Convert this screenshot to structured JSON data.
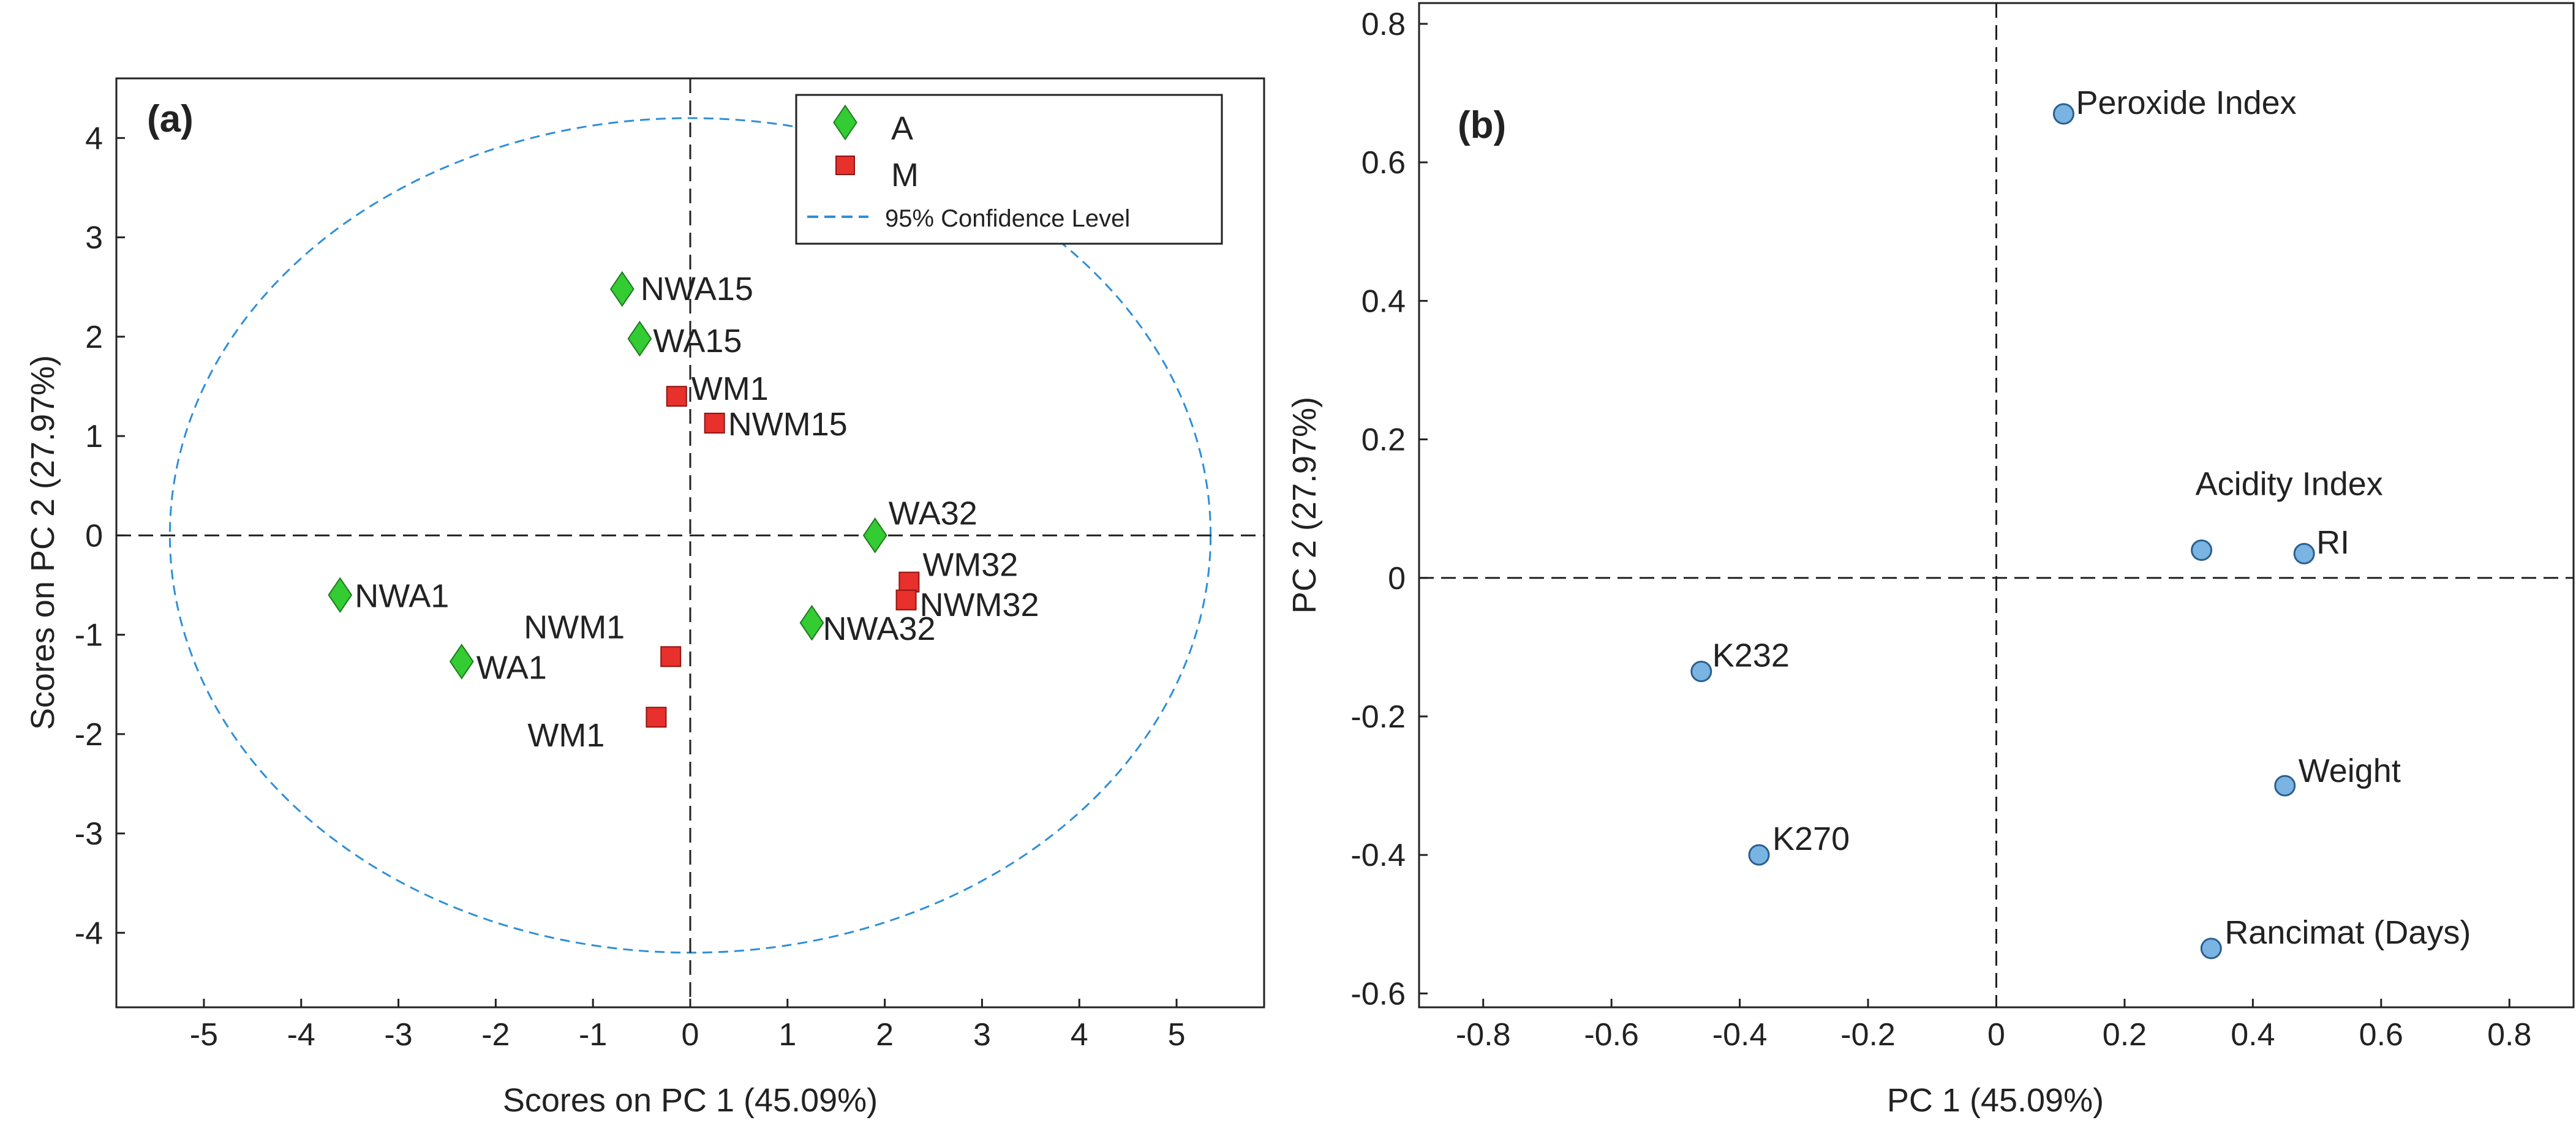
{
  "colors": {
    "group_a": "#33cc33",
    "group_m": "#e8302c",
    "loading_point": "#7ab4e2",
    "confidence_ellipse": "#2f8fd8",
    "axis": "#222222"
  },
  "chart_data": [
    {
      "panel_label": "(a)",
      "type": "scatter",
      "title": "",
      "xlabel": "Scores on PC 1 (45.09%)",
      "ylabel": "Scores on PC 2 (27.97%)",
      "xlim": [
        -5.9,
        5.9
      ],
      "ylim": [
        -4.75,
        4.6
      ],
      "xticks": [
        "-5",
        "-4",
        "-3",
        "-2",
        "-1",
        "0",
        "1",
        "2",
        "3",
        "4",
        "5"
      ],
      "yticks": [
        "-4",
        "-3",
        "-2",
        "-1",
        "0",
        "1",
        "2",
        "3",
        "4"
      ],
      "grid": false,
      "legend_position": "top-right",
      "legend": [
        {
          "label": "A",
          "marker": "diamond",
          "color": "#33cc33"
        },
        {
          "label": "M",
          "marker": "square",
          "color": "#e8302c"
        },
        {
          "label": "95% Confidence Level",
          "marker": "dashed-line",
          "color": "#2f8fd8"
        }
      ],
      "confidence_ellipse": {
        "cx": 0,
        "cy": 0,
        "rx": 5.35,
        "ry": 4.2
      },
      "series": [
        {
          "name": "A",
          "marker": "diamond",
          "points": [
            {
              "label": "NWA15",
              "x": -0.7,
              "y": 2.48
            },
            {
              "label": "WA15",
              "x": -0.52,
              "y": 1.98
            },
            {
              "label": "WA32",
              "x": 1.9,
              "y": 0.0
            },
            {
              "label": "NWA1",
              "x": -3.6,
              "y": -0.6
            },
            {
              "label": "WA1",
              "x": -2.35,
              "y": -1.27
            },
            {
              "label": "NWA32",
              "x": 1.25,
              "y": -0.88
            }
          ]
        },
        {
          "name": "M",
          "marker": "square",
          "points": [
            {
              "label": "WM1",
              "x": -0.14,
              "y": 1.4
            },
            {
              "label": "NWM15",
              "x": 0.25,
              "y": 1.13
            },
            {
              "label": "WM32",
              "x": 2.25,
              "y": -0.47
            },
            {
              "label": "NWM32",
              "x": 2.22,
              "y": -0.65
            },
            {
              "label": "NWM1",
              "x": -0.2,
              "y": -1.22
            },
            {
              "label": "WM1",
              "x": -0.35,
              "y": -1.83
            }
          ]
        }
      ]
    },
    {
      "panel_label": "(b)",
      "type": "scatter",
      "title": "",
      "xlabel": "PC 1 (45.09%)",
      "ylabel": "PC 2 (27.97%)",
      "xlim": [
        -0.9,
        0.9
      ],
      "ylim": [
        -0.62,
        0.83
      ],
      "xticks": [
        "-0.8",
        "-0.6",
        "-0.4",
        "-0.2",
        "0",
        "0.2",
        "0.4",
        "0.6",
        "0.8"
      ],
      "yticks": [
        "-0.6",
        "-0.4",
        "-0.2",
        "0",
        "0.2",
        "0.4",
        "0.6",
        "0.8"
      ],
      "grid": false,
      "points": [
        {
          "label": "Peroxide Index",
          "x": 0.105,
          "y": 0.67
        },
        {
          "label": "Acidity Index",
          "x": 0.32,
          "y": 0.04
        },
        {
          "label": "RI",
          "x": 0.48,
          "y": 0.035
        },
        {
          "label": "K232",
          "x": -0.46,
          "y": -0.135
        },
        {
          "label": "Weight",
          "x": 0.45,
          "y": -0.3
        },
        {
          "label": "K270",
          "x": -0.37,
          "y": -0.4
        },
        {
          "label": "Rancimat (Days)",
          "x": 0.335,
          "y": -0.535
        }
      ]
    }
  ]
}
